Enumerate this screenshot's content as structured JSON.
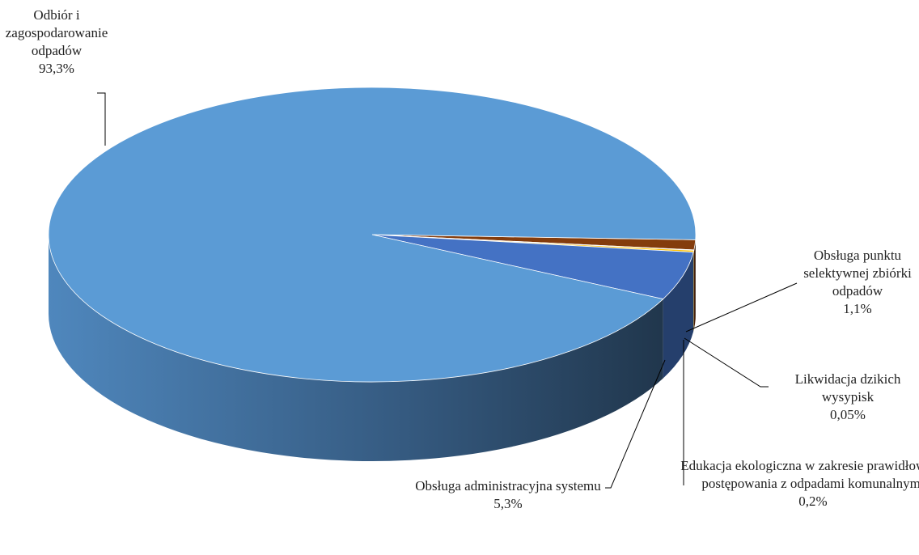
{
  "chart_data": {
    "type": "pie",
    "categories": [
      "Obsługa punktu selektywnej zbiórki odpadów",
      "Likwidacja dzikich wysypisk",
      "Edukacja ekologiczna w zakresie prawidłowego postępowania z odpadami komunalnymi",
      "Obsługa administracyjna systemu",
      "Odbiór i zagospodarowanie odpadów"
    ],
    "values": [
      1.1,
      0.05,
      0.2,
      5.3,
      93.3
    ],
    "value_labels": [
      "1,1%",
      "0,05%",
      "0,2%",
      "5,3%",
      "93,3%"
    ],
    "colors": [
      "#843c0c",
      "#a5a5a5",
      "#ffc000",
      "#4472c4",
      "#5b9bd5"
    ]
  }
}
